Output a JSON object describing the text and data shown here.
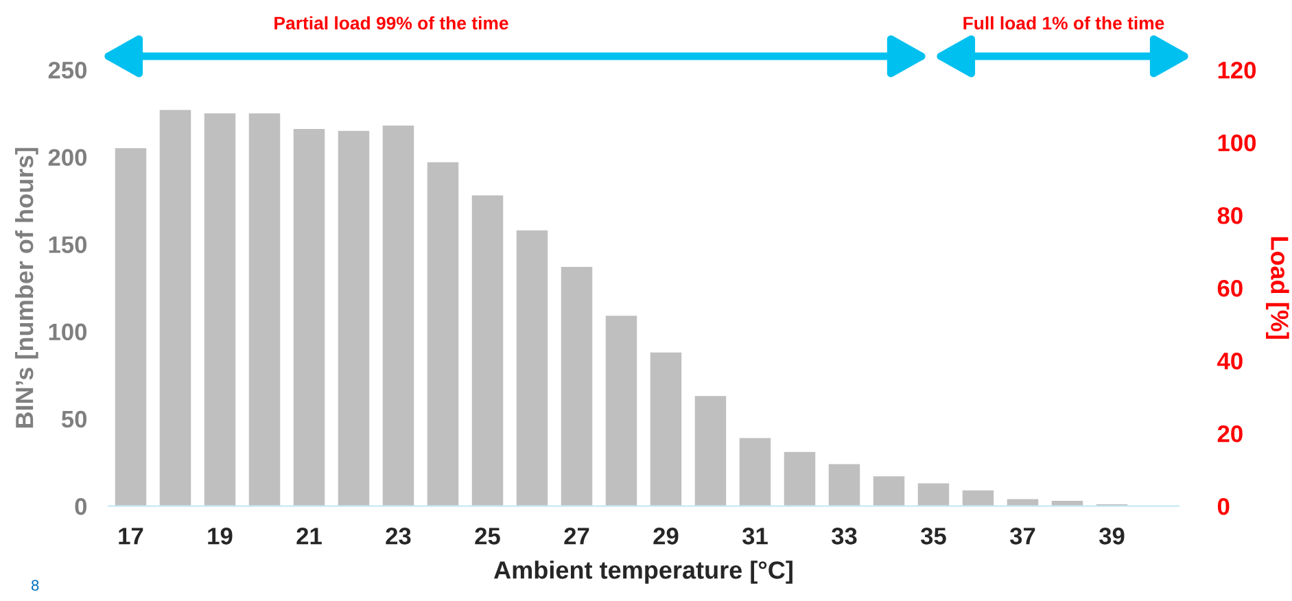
{
  "chart_data": {
    "type": "bar",
    "xlabel": "Ambient temperature [°C]",
    "ylabel": "BIN’s [number of hours]",
    "y2label": "Load [%]",
    "categories": [
      "17",
      null,
      "19",
      null,
      "21",
      null,
      "23",
      null,
      "25",
      null,
      "27",
      null,
      "29",
      null,
      "31",
      null,
      "33",
      null,
      "35",
      null,
      "37",
      null,
      "39",
      null
    ],
    "values": [
      205,
      227,
      225,
      225,
      216,
      215,
      218,
      197,
      178,
      158,
      137,
      109,
      88,
      63,
      39,
      31,
      24,
      17,
      13,
      9,
      4,
      3,
      1,
      null
    ],
    "color": "#bfbfbf",
    "ylim": [
      0,
      250
    ],
    "yticks": [
      0,
      50,
      100,
      150,
      200,
      250
    ],
    "y2lim": [
      0,
      120
    ],
    "y2ticks": [
      0,
      20,
      40,
      60,
      80,
      100,
      120
    ],
    "grid": false,
    "legend": false,
    "annotations": [
      "Partial load 99% of the time",
      "Full load 1% of the time",
      "8"
    ]
  }
}
